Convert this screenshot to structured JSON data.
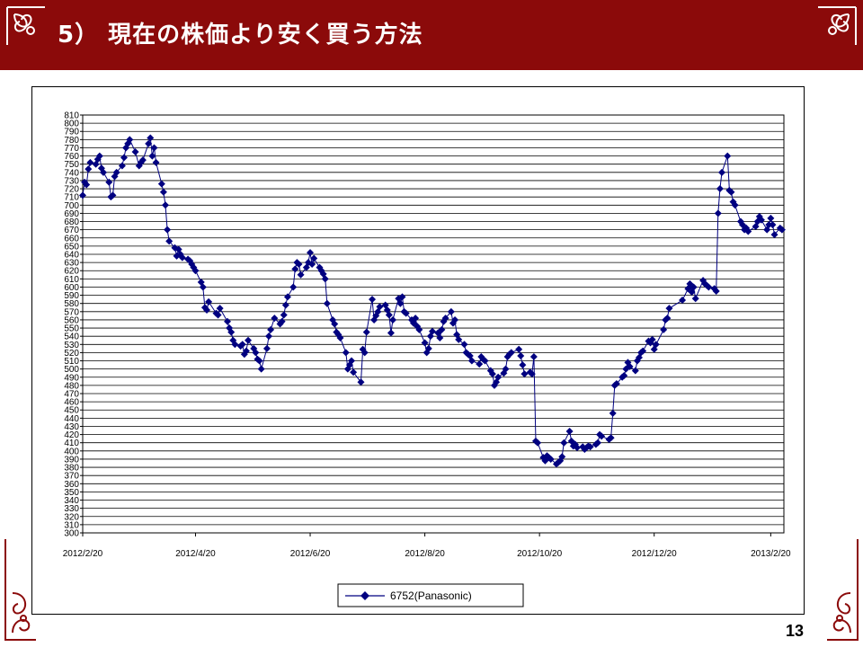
{
  "slide": {
    "title": "5） 現在の株価より安く買う方法",
    "page_number": "13",
    "colors": {
      "header": "#8b0a0a",
      "series": "#000080",
      "ornament": "#8b0a0a"
    }
  },
  "chart_data": {
    "type": "line",
    "title": "",
    "xlabel": "",
    "ylabel": "",
    "ylim": [
      300,
      810
    ],
    "ytick_step": 10,
    "xlim": [
      "2012-02-20",
      "2013-02-27"
    ],
    "xticks": [
      "2012/2/20",
      "2012/4/20",
      "2012/6/20",
      "2012/8/20",
      "2012/10/20",
      "2012/12/20",
      "2013/2/20"
    ],
    "grid": true,
    "marker": "diamond",
    "legend_position": "bottom",
    "series": [
      {
        "name": "6752(Panasonic)",
        "points": [
          [
            "2012-02-20",
            712
          ],
          [
            "2012-02-21",
            728
          ],
          [
            "2012-02-22",
            725
          ],
          [
            "2012-02-23",
            744
          ],
          [
            "2012-02-24",
            752
          ],
          [
            "2012-02-27",
            750
          ],
          [
            "2012-02-28",
            756
          ],
          [
            "2012-02-29",
            760
          ],
          [
            "2012-03-01",
            745
          ],
          [
            "2012-03-02",
            740
          ],
          [
            "2012-03-05",
            728
          ],
          [
            "2012-03-06",
            710
          ],
          [
            "2012-03-07",
            712
          ],
          [
            "2012-03-08",
            735
          ],
          [
            "2012-03-09",
            740
          ],
          [
            "2012-03-12",
            748
          ],
          [
            "2012-03-13",
            758
          ],
          [
            "2012-03-14",
            770
          ],
          [
            "2012-03-15",
            775
          ],
          [
            "2012-03-16",
            780
          ],
          [
            "2012-03-19",
            765
          ],
          [
            "2012-03-21",
            748
          ],
          [
            "2012-03-22",
            752
          ],
          [
            "2012-03-23",
            755
          ],
          [
            "2012-03-26",
            775
          ],
          [
            "2012-03-27",
            782
          ],
          [
            "2012-03-28",
            760
          ],
          [
            "2012-03-29",
            770
          ],
          [
            "2012-03-30",
            752
          ],
          [
            "2012-04-02",
            726
          ],
          [
            "2012-04-03",
            716
          ],
          [
            "2012-04-04",
            700
          ],
          [
            "2012-04-05",
            670
          ],
          [
            "2012-04-06",
            656
          ],
          [
            "2012-04-09",
            648
          ],
          [
            "2012-04-10",
            638
          ],
          [
            "2012-04-11",
            646
          ],
          [
            "2012-04-12",
            640
          ],
          [
            "2012-04-13",
            636
          ],
          [
            "2012-04-16",
            634
          ],
          [
            "2012-04-17",
            632
          ],
          [
            "2012-04-18",
            628
          ],
          [
            "2012-04-19",
            624
          ],
          [
            "2012-04-20",
            620
          ],
          [
            "2012-04-23",
            606
          ],
          [
            "2012-04-24",
            600
          ],
          [
            "2012-04-25",
            575
          ],
          [
            "2012-04-26",
            572
          ],
          [
            "2012-04-27",
            582
          ],
          [
            "2012-05-01",
            568
          ],
          [
            "2012-05-02",
            566
          ],
          [
            "2012-05-03",
            574
          ],
          [
            "2012-05-07",
            558
          ],
          [
            "2012-05-08",
            550
          ],
          [
            "2012-05-09",
            545
          ],
          [
            "2012-05-10",
            535
          ],
          [
            "2012-05-11",
            530
          ],
          [
            "2012-05-14",
            528
          ],
          [
            "2012-05-15",
            530
          ],
          [
            "2012-05-16",
            518
          ],
          [
            "2012-05-17",
            522
          ],
          [
            "2012-05-18",
            535
          ],
          [
            "2012-05-21",
            525
          ],
          [
            "2012-05-22",
            520
          ],
          [
            "2012-05-23",
            512
          ],
          [
            "2012-05-24",
            510
          ],
          [
            "2012-05-25",
            500
          ],
          [
            "2012-05-28",
            525
          ],
          [
            "2012-05-29",
            540
          ],
          [
            "2012-05-30",
            548
          ],
          [
            "2012-06-01",
            562
          ],
          [
            "2012-06-04",
            555
          ],
          [
            "2012-06-05",
            558
          ],
          [
            "2012-06-06",
            566
          ],
          [
            "2012-06-07",
            578
          ],
          [
            "2012-06-08",
            588
          ],
          [
            "2012-06-11",
            600
          ],
          [
            "2012-06-12",
            622
          ],
          [
            "2012-06-13",
            630
          ],
          [
            "2012-06-14",
            628
          ],
          [
            "2012-06-15",
            615
          ],
          [
            "2012-06-18",
            624
          ],
          [
            "2012-06-19",
            630
          ],
          [
            "2012-06-20",
            642
          ],
          [
            "2012-06-21",
            628
          ],
          [
            "2012-06-22",
            635
          ],
          [
            "2012-06-25",
            624
          ],
          [
            "2012-06-26",
            620
          ],
          [
            "2012-06-27",
            616
          ],
          [
            "2012-06-28",
            610
          ],
          [
            "2012-06-29",
            580
          ],
          [
            "2012-07-02",
            560
          ],
          [
            "2012-07-03",
            555
          ],
          [
            "2012-07-04",
            545
          ],
          [
            "2012-07-05",
            542
          ],
          [
            "2012-07-06",
            538
          ],
          [
            "2012-07-09",
            520
          ],
          [
            "2012-07-10",
            500
          ],
          [
            "2012-07-11",
            505
          ],
          [
            "2012-07-12",
            510
          ],
          [
            "2012-07-13",
            496
          ],
          [
            "2012-07-17",
            484
          ],
          [
            "2012-07-18",
            524
          ],
          [
            "2012-07-19",
            520
          ],
          [
            "2012-07-20",
            545
          ],
          [
            "2012-07-23",
            585
          ],
          [
            "2012-07-24",
            560
          ],
          [
            "2012-07-25",
            565
          ],
          [
            "2012-07-26",
            570
          ],
          [
            "2012-07-27",
            576
          ],
          [
            "2012-07-30",
            578
          ],
          [
            "2012-07-31",
            572
          ],
          [
            "2012-08-01",
            566
          ],
          [
            "2012-08-02",
            544
          ],
          [
            "2012-08-03",
            560
          ],
          [
            "2012-08-06",
            586
          ],
          [
            "2012-08-07",
            580
          ],
          [
            "2012-08-08",
            588
          ],
          [
            "2012-08-09",
            570
          ],
          [
            "2012-08-10",
            568
          ],
          [
            "2012-08-13",
            560
          ],
          [
            "2012-08-14",
            556
          ],
          [
            "2012-08-15",
            562
          ],
          [
            "2012-08-16",
            552
          ],
          [
            "2012-08-17",
            548
          ],
          [
            "2012-08-20",
            532
          ],
          [
            "2012-08-21",
            520
          ],
          [
            "2012-08-22",
            525
          ],
          [
            "2012-08-23",
            540
          ],
          [
            "2012-08-24",
            546
          ],
          [
            "2012-08-27",
            544
          ],
          [
            "2012-08-28",
            538
          ],
          [
            "2012-08-29",
            548
          ],
          [
            "2012-08-30",
            558
          ],
          [
            "2012-08-31",
            562
          ],
          [
            "2012-09-03",
            570
          ],
          [
            "2012-09-04",
            556
          ],
          [
            "2012-09-05",
            560
          ],
          [
            "2012-09-06",
            542
          ],
          [
            "2012-09-07",
            536
          ],
          [
            "2012-09-10",
            530
          ],
          [
            "2012-09-11",
            520
          ],
          [
            "2012-09-12",
            518
          ],
          [
            "2012-09-13",
            516
          ],
          [
            "2012-09-14",
            510
          ],
          [
            "2012-09-18",
            506
          ],
          [
            "2012-09-19",
            515
          ],
          [
            "2012-09-20",
            512
          ],
          [
            "2012-09-21",
            510
          ],
          [
            "2012-09-24",
            498
          ],
          [
            "2012-09-25",
            494
          ],
          [
            "2012-09-26",
            480
          ],
          [
            "2012-09-27",
            484
          ],
          [
            "2012-09-28",
            490
          ],
          [
            "2012-10-01",
            495
          ],
          [
            "2012-10-02",
            500
          ],
          [
            "2012-10-03",
            515
          ],
          [
            "2012-10-04",
            518
          ],
          [
            "2012-10-05",
            520
          ],
          [
            "2012-10-09",
            524
          ],
          [
            "2012-10-10",
            516
          ],
          [
            "2012-10-11",
            505
          ],
          [
            "2012-10-12",
            494
          ],
          [
            "2012-10-15",
            496
          ],
          [
            "2012-10-16",
            494
          ],
          [
            "2012-10-17",
            515
          ],
          [
            "2012-10-18",
            412
          ],
          [
            "2012-10-19",
            410
          ],
          [
            "2012-10-22",
            392
          ],
          [
            "2012-10-23",
            388
          ],
          [
            "2012-10-24",
            394
          ],
          [
            "2012-10-25",
            392
          ],
          [
            "2012-10-26",
            390
          ],
          [
            "2012-10-29",
            384
          ],
          [
            "2012-10-30",
            386
          ],
          [
            "2012-10-31",
            388
          ],
          [
            "2012-11-01",
            393
          ],
          [
            "2012-11-02",
            410
          ],
          [
            "2012-11-05",
            424
          ],
          [
            "2012-11-06",
            412
          ],
          [
            "2012-11-07",
            406
          ],
          [
            "2012-11-08",
            408
          ],
          [
            "2012-11-09",
            404
          ],
          [
            "2012-11-12",
            405
          ],
          [
            "2012-11-13",
            402
          ],
          [
            "2012-11-14",
            404
          ],
          [
            "2012-11-15",
            406
          ],
          [
            "2012-11-16",
            405
          ],
          [
            "2012-11-19",
            408
          ],
          [
            "2012-11-20",
            410
          ],
          [
            "2012-11-21",
            420
          ],
          [
            "2012-11-22",
            418
          ],
          [
            "2012-11-26",
            414
          ],
          [
            "2012-11-27",
            416
          ],
          [
            "2012-11-28",
            446
          ],
          [
            "2012-11-29",
            480
          ],
          [
            "2012-11-30",
            482
          ],
          [
            "2012-12-03",
            490
          ],
          [
            "2012-12-04",
            492
          ],
          [
            "2012-12-05",
            500
          ],
          [
            "2012-12-06",
            508
          ],
          [
            "2012-12-07",
            503
          ],
          [
            "2012-12-10",
            498
          ],
          [
            "2012-12-11",
            510
          ],
          [
            "2012-12-12",
            514
          ],
          [
            "2012-12-13",
            520
          ],
          [
            "2012-12-14",
            522
          ],
          [
            "2012-12-17",
            534
          ],
          [
            "2012-12-18",
            532
          ],
          [
            "2012-12-19",
            536
          ],
          [
            "2012-12-20",
            524
          ],
          [
            "2012-12-21",
            530
          ],
          [
            "2012-12-25",
            548
          ],
          [
            "2012-12-26",
            560
          ],
          [
            "2012-12-27",
            562
          ],
          [
            "2012-12-28",
            574
          ],
          [
            "2013-01-04",
            584
          ],
          [
            "2013-01-07",
            598
          ],
          [
            "2013-01-08",
            604
          ],
          [
            "2013-01-09",
            594
          ],
          [
            "2013-01-10",
            600
          ],
          [
            "2013-01-11",
            586
          ],
          [
            "2013-01-15",
            608
          ],
          [
            "2013-01-16",
            604
          ],
          [
            "2013-01-17",
            602
          ],
          [
            "2013-01-18",
            600
          ],
          [
            "2013-01-21",
            598
          ],
          [
            "2013-01-22",
            595
          ],
          [
            "2013-01-23",
            690
          ],
          [
            "2013-01-24",
            720
          ],
          [
            "2013-01-25",
            740
          ],
          [
            "2013-01-28",
            760
          ],
          [
            "2013-01-29",
            718
          ],
          [
            "2013-01-30",
            716
          ],
          [
            "2013-01-31",
            704
          ],
          [
            "2013-02-01",
            700
          ],
          [
            "2013-02-04",
            680
          ],
          [
            "2013-02-05",
            676
          ],
          [
            "2013-02-06",
            670
          ],
          [
            "2013-02-07",
            672
          ],
          [
            "2013-02-08",
            668
          ],
          [
            "2013-02-12",
            674
          ],
          [
            "2013-02-13",
            680
          ],
          [
            "2013-02-14",
            686
          ],
          [
            "2013-02-15",
            682
          ],
          [
            "2013-02-18",
            670
          ],
          [
            "2013-02-19",
            676
          ],
          [
            "2013-02-20",
            684
          ],
          [
            "2013-02-21",
            676
          ],
          [
            "2013-02-22",
            664
          ],
          [
            "2013-02-25",
            672
          ],
          [
            "2013-02-26",
            670
          ]
        ]
      }
    ]
  }
}
